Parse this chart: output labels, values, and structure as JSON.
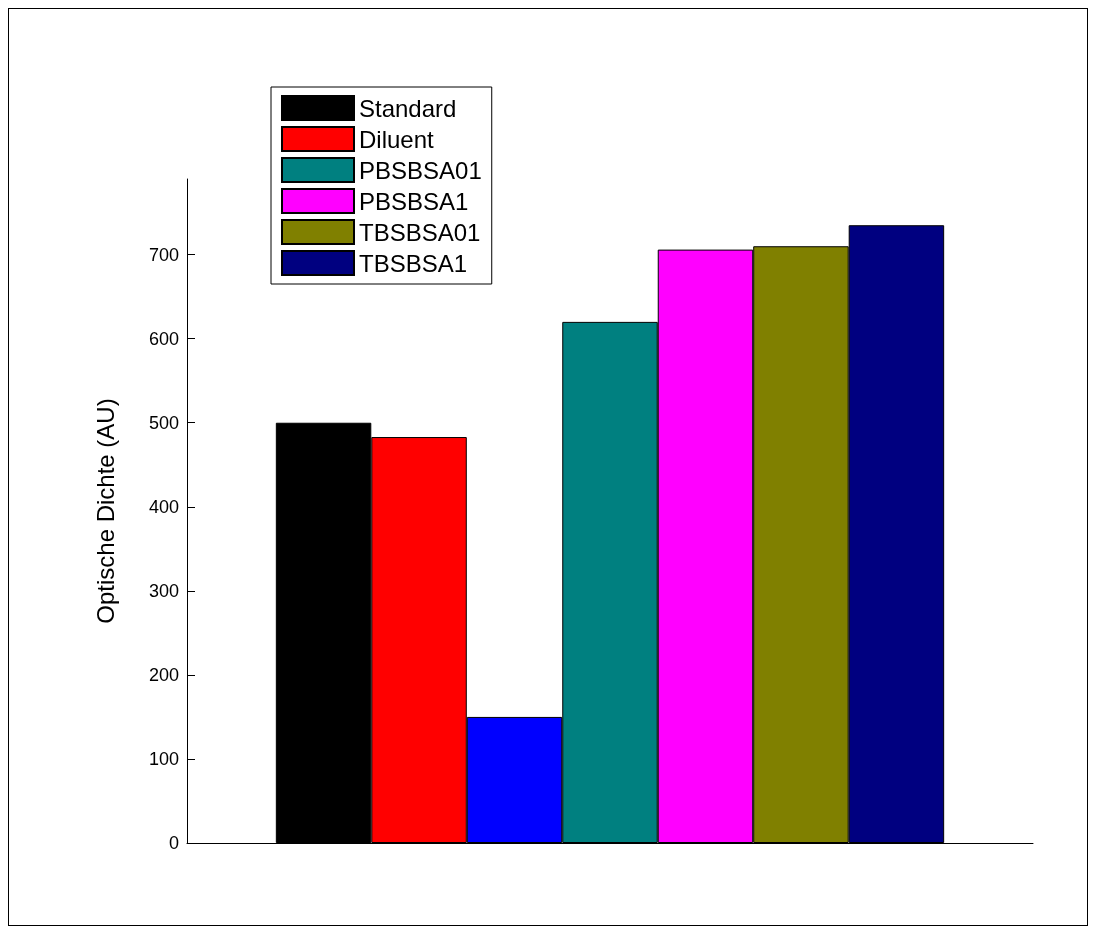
{
  "chart_data": {
    "type": "bar",
    "ylabel": "Optische Dichte (AU)",
    "categories": [
      null
    ],
    "series": [
      {
        "name": "Standard",
        "color": "#000000",
        "values": [
          500
        ]
      },
      {
        "name": "Diluent",
        "color": "#ff0000",
        "values": [
          483
        ]
      },
      {
        "color": "#0000ff",
        "values": [
          150
        ]
      },
      {
        "name": "PBSBSA01",
        "color": "#008080",
        "values": [
          620
        ]
      },
      {
        "name": "PBSBSA1",
        "color": "#ff00ff",
        "values": [
          706
        ]
      },
      {
        "name": "TBSBSA01",
        "color": "#808000",
        "values": [
          710
        ]
      },
      {
        "name": "TBSBSA1",
        "color": "#000080",
        "values": [
          735
        ]
      }
    ],
    "ylim": [
      0,
      790
    ],
    "yticks": [
      0,
      100,
      200,
      300,
      400,
      500,
      600,
      700
    ],
    "grid": false,
    "legend": "top left",
    "tick_labels": "y"
  }
}
